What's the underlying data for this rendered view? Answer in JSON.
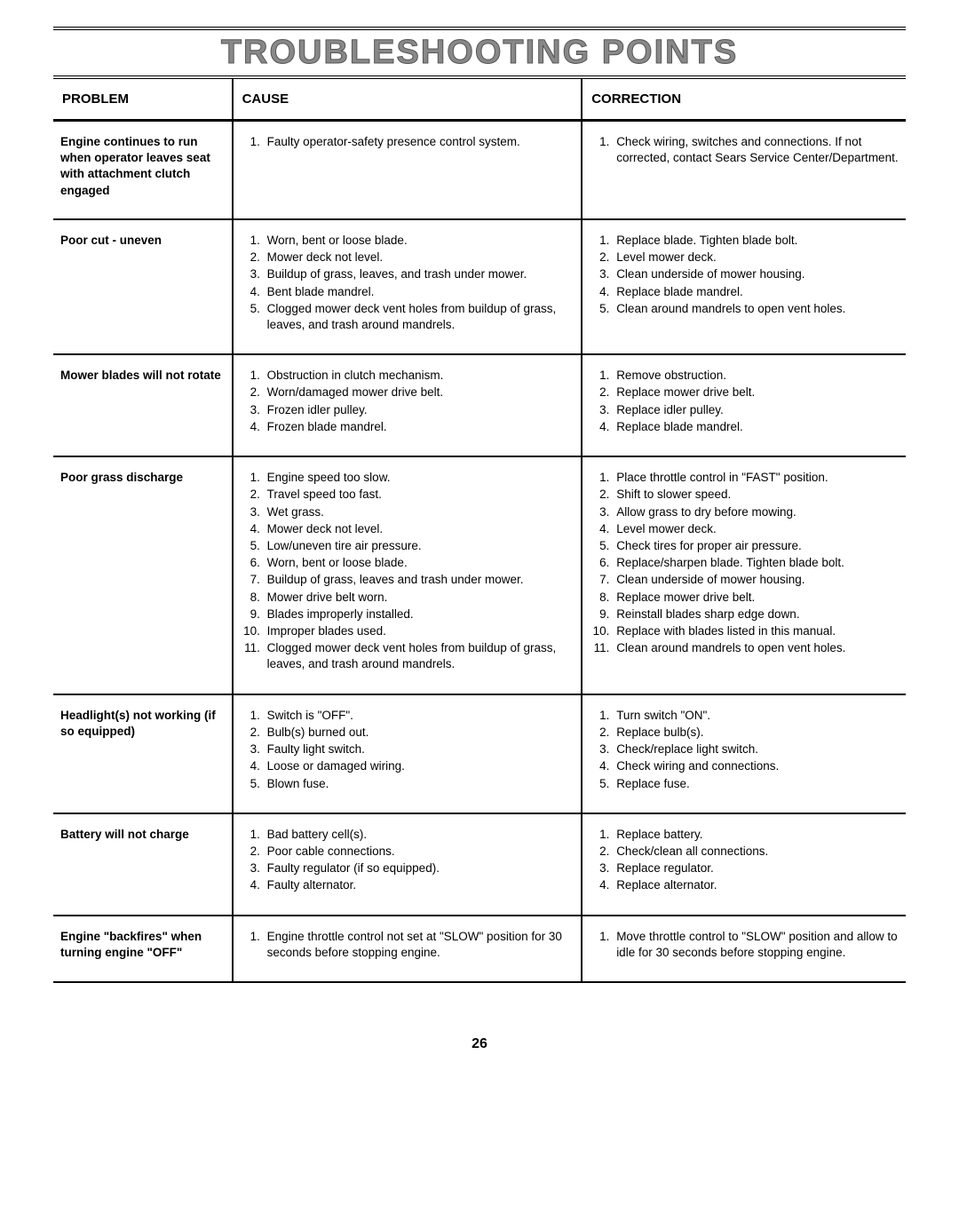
{
  "page_title": "TROUBLESHOOTING POINTS",
  "page_number": "26",
  "headers": {
    "problem": "PROBLEM",
    "cause": "CAUSE",
    "correction": "CORRECTION"
  },
  "rows": [
    {
      "problem": "Engine continues to run when operator leaves seat with attachment clutch engaged",
      "causes": [
        "Faulty operator-safety presence control system."
      ],
      "corrections": [
        "Check wiring, switches and connections. If not corrected, contact Sears Service Center/Department."
      ]
    },
    {
      "problem": "Poor cut - uneven",
      "causes": [
        "Worn, bent or loose blade.",
        "Mower deck not level.",
        "Buildup of grass, leaves, and trash under mower.",
        "Bent blade mandrel.",
        "Clogged mower deck vent holes from buildup of grass, leaves, and trash around mandrels."
      ],
      "corrections": [
        "Replace blade. Tighten blade bolt.",
        "Level mower deck.",
        "Clean underside of mower housing.",
        "Replace blade mandrel.",
        "Clean around mandrels to open vent holes."
      ]
    },
    {
      "problem": "Mower blades will not rotate",
      "causes": [
        "Obstruction in clutch mechanism.",
        "Worn/damaged mower drive belt.",
        "Frozen idler pulley.",
        "Frozen blade mandrel."
      ],
      "corrections": [
        "Remove obstruction.",
        "Replace mower drive belt.",
        "Replace idler pulley.",
        "Replace blade mandrel."
      ]
    },
    {
      "problem": "Poor grass discharge",
      "causes": [
        "Engine speed too slow.",
        "Travel speed too fast.",
        "Wet grass.",
        "Mower deck not level.",
        "Low/uneven tire air pressure.",
        "Worn, bent or loose blade.",
        "Buildup of grass, leaves and trash under mower.",
        "Mower drive belt worn.",
        "Blades improperly installed.",
        "Improper blades used.",
        "Clogged mower deck vent holes from buildup of grass, leaves, and trash around mandrels."
      ],
      "corrections": [
        "Place throttle control in \"FAST\" position.",
        "Shift to slower speed.",
        "Allow grass to dry before mowing.",
        "Level mower deck.",
        "Check tires for proper air pressure.",
        "Replace/sharpen blade. Tighten blade bolt.",
        "Clean underside of mower housing.",
        "Replace mower drive belt.",
        "Reinstall blades sharp edge down.",
        "Replace with blades listed in this manual.",
        "Clean around mandrels to open vent holes."
      ]
    },
    {
      "problem": "Headlight(s) not working (if so equipped)",
      "causes": [
        "Switch is \"OFF\".",
        "Bulb(s) burned out.",
        "Faulty light switch.",
        "Loose or damaged wiring.",
        "Blown fuse."
      ],
      "corrections": [
        "Turn switch \"ON\".",
        "Replace bulb(s).",
        "Check/replace light switch.",
        "Check wiring and connections.",
        "Replace fuse."
      ]
    },
    {
      "problem": "Battery will not charge",
      "causes": [
        "Bad battery cell(s).",
        "Poor cable connections.",
        "Faulty regulator (if so equipped).",
        "Faulty alternator."
      ],
      "corrections": [
        "Replace battery.",
        "Check/clean all connections.",
        "Replace regulator.",
        "Replace alternator."
      ]
    },
    {
      "problem": "Engine \"backfires\" when turning engine \"OFF\"",
      "causes": [
        "Engine throttle control not set at \"SLOW\" position for 30 seconds before stopping engine."
      ],
      "corrections": [
        "Move throttle control to \"SLOW\" position and allow to idle for 30 seconds before stopping engine."
      ]
    }
  ]
}
